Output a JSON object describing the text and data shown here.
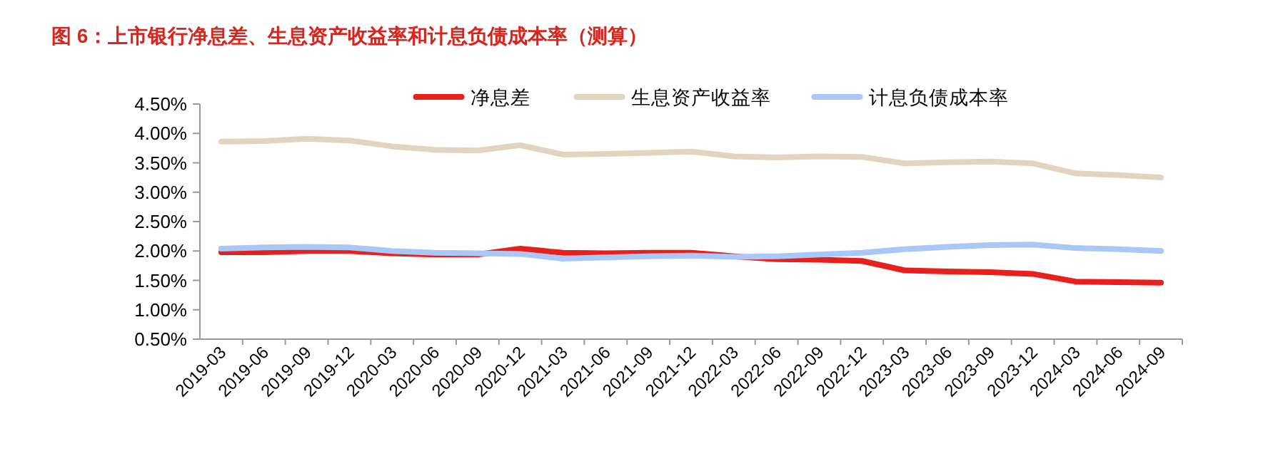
{
  "chart_data": {
    "type": "line",
    "title": "图 6：上市银行净息差、生息资产收益率和计息负债成本率（测算）",
    "categories": [
      "2019-03",
      "2019-06",
      "2019-09",
      "2019-12",
      "2020-03",
      "2020-06",
      "2020-09",
      "2020-12",
      "2021-03",
      "2021-06",
      "2021-09",
      "2021-12",
      "2022-03",
      "2022-06",
      "2022-09",
      "2022-12",
      "2023-03",
      "2023-06",
      "2023-09",
      "2023-12",
      "2024-03",
      "2024-06",
      "2024-09"
    ],
    "series": [
      {
        "name": "净息差",
        "color": "#e8201c",
        "values": [
          1.98,
          1.98,
          2.0,
          2.0,
          1.96,
          1.94,
          1.94,
          2.04,
          1.97,
          1.96,
          1.97,
          1.97,
          1.91,
          1.86,
          1.85,
          1.83,
          1.67,
          1.65,
          1.64,
          1.61,
          1.48,
          1.47,
          1.46
        ]
      },
      {
        "name": "生息资产收益率",
        "color": "#e0d6bf",
        "values": [
          3.86,
          3.87,
          3.91,
          3.88,
          3.78,
          3.72,
          3.71,
          3.8,
          3.64,
          3.65,
          3.67,
          3.69,
          3.61,
          3.59,
          3.61,
          3.6,
          3.49,
          3.51,
          3.52,
          3.49,
          3.32,
          3.29,
          3.25
        ]
      },
      {
        "name": "计息负债成本率",
        "color": "#a9c8f7",
        "values": [
          2.04,
          2.06,
          2.07,
          2.06,
          2.0,
          1.97,
          1.96,
          1.95,
          1.87,
          1.89,
          1.91,
          1.92,
          1.9,
          1.91,
          1.94,
          1.97,
          2.03,
          2.07,
          2.1,
          2.11,
          2.05,
          2.03,
          2.0
        ]
      }
    ],
    "ylim": [
      0.5,
      4.5
    ],
    "yticks": [
      {
        "value": 0.5,
        "label": "0.50%"
      },
      {
        "value": 1.0,
        "label": "1.00%"
      },
      {
        "value": 1.5,
        "label": "1.50%"
      },
      {
        "value": 2.0,
        "label": "2.00%"
      },
      {
        "value": 2.5,
        "label": "2.50%"
      },
      {
        "value": 3.0,
        "label": "3.00%"
      },
      {
        "value": 3.5,
        "label": "3.50%"
      },
      {
        "value": 4.0,
        "label": "4.00%"
      },
      {
        "value": 4.5,
        "label": "4.50%"
      }
    ],
    "grid": false,
    "legend": "top"
  }
}
